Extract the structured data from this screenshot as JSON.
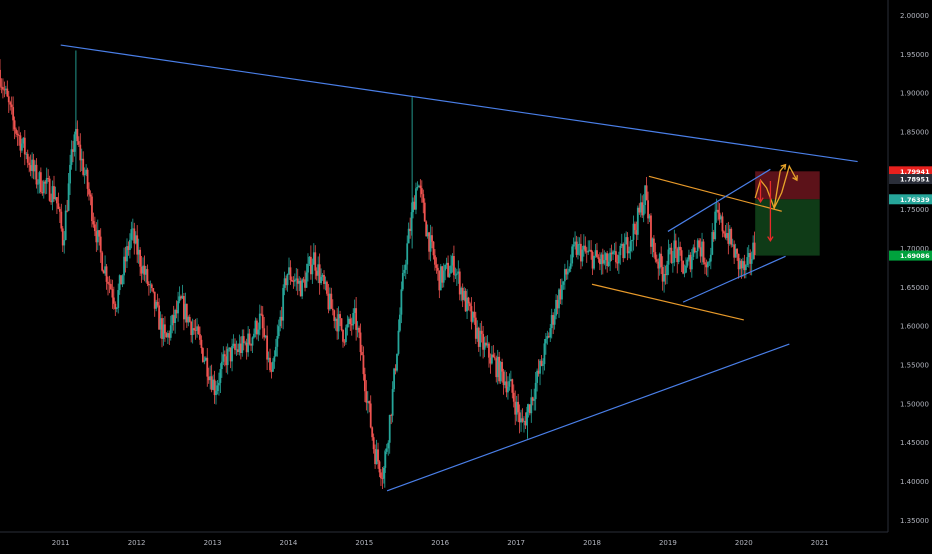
{
  "chart_data": {
    "type": "candlestick",
    "x_axis": {
      "ticks": [
        "2011",
        "2012",
        "2013",
        "2014",
        "2015",
        "2016",
        "2017",
        "2018",
        "2019",
        "2020",
        "2021"
      ],
      "range": [
        2010.2,
        2021.9
      ]
    },
    "y_axis": {
      "ticks": [
        "2.00000",
        "1.95000",
        "1.90000",
        "1.85000",
        "1.80000",
        "1.75000",
        "1.70000",
        "1.65000",
        "1.60000",
        "1.55000",
        "1.50000",
        "1.45000",
        "1.40000",
        "1.35000"
      ],
      "range": [
        1.335,
        2.02
      ],
      "position": "right"
    },
    "grid": false,
    "price_tags": [
      {
        "label": "1.79941",
        "value": 1.7994,
        "color": "#e8201d"
      },
      {
        "label": "1.78951",
        "value": 1.7895,
        "color": "#2a2e39"
      },
      {
        "label": "1.76339",
        "value": 1.7634,
        "color": "#26a69a"
      },
      {
        "label": "1.69086",
        "value": 1.6909,
        "color": "#00a23d"
      }
    ],
    "anchors": [
      [
        2010.2,
        1.93
      ],
      [
        2010.4,
        1.86
      ],
      [
        2010.7,
        1.79
      ],
      [
        2010.95,
        1.77
      ],
      [
        2011.05,
        1.71
      ],
      [
        2011.2,
        1.85
      ],
      [
        2011.35,
        1.79
      ],
      [
        2011.55,
        1.69
      ],
      [
        2011.75,
        1.63
      ],
      [
        2011.95,
        1.72
      ],
      [
        2012.15,
        1.66
      ],
      [
        2012.4,
        1.58
      ],
      [
        2012.6,
        1.63
      ],
      [
        2012.8,
        1.59
      ],
      [
        2012.95,
        1.55
      ],
      [
        2013.05,
        1.52
      ],
      [
        2013.2,
        1.56
      ],
      [
        2013.5,
        1.58
      ],
      [
        2013.65,
        1.61
      ],
      [
        2013.8,
        1.53
      ],
      [
        2014.0,
        1.67
      ],
      [
        2014.2,
        1.65
      ],
      [
        2014.35,
        1.69
      ],
      [
        2014.55,
        1.63
      ],
      [
        2014.75,
        1.59
      ],
      [
        2014.9,
        1.61
      ],
      [
        2015.0,
        1.55
      ],
      [
        2015.15,
        1.44
      ],
      [
        2015.27,
        1.41
      ],
      [
        2015.4,
        1.52
      ],
      [
        2015.55,
        1.68
      ],
      [
        2015.72,
        1.79
      ],
      [
        2015.85,
        1.72
      ],
      [
        2016.0,
        1.66
      ],
      [
        2016.2,
        1.68
      ],
      [
        2016.35,
        1.63
      ],
      [
        2016.55,
        1.58
      ],
      [
        2016.75,
        1.55
      ],
      [
        2016.95,
        1.52
      ],
      [
        2017.1,
        1.47
      ],
      [
        2017.2,
        1.5
      ],
      [
        2017.35,
        1.55
      ],
      [
        2017.55,
        1.63
      ],
      [
        2017.8,
        1.7
      ],
      [
        2018.0,
        1.69
      ],
      [
        2018.2,
        1.68
      ],
      [
        2018.4,
        1.69
      ],
      [
        2018.6,
        1.73
      ],
      [
        2018.72,
        1.77
      ],
      [
        2018.82,
        1.7
      ],
      [
        2018.95,
        1.67
      ],
      [
        2019.1,
        1.7
      ],
      [
        2019.25,
        1.67
      ],
      [
        2019.4,
        1.71
      ],
      [
        2019.55,
        1.68
      ],
      [
        2019.65,
        1.74
      ],
      [
        2019.8,
        1.72
      ],
      [
        2019.95,
        1.68
      ],
      [
        2020.05,
        1.67
      ],
      [
        2020.15,
        1.7
      ]
    ],
    "spikes": [
      {
        "x": 2011.2,
        "high": 1.955,
        "low": 1.8
      },
      {
        "x": 2015.63,
        "high": 1.895,
        "low": 1.7
      },
      {
        "x": 2015.27,
        "high": 1.44,
        "low": 1.392
      },
      {
        "x": 2017.15,
        "high": 1.5,
        "low": 1.455
      }
    ],
    "trendlines": [
      {
        "color": "#4a7fe8",
        "points": [
          [
            2011.0,
            1.962
          ],
          [
            2021.5,
            1.812
          ]
        ]
      },
      {
        "color": "#4a7fe8",
        "points": [
          [
            2015.3,
            1.388
          ],
          [
            2020.6,
            1.577
          ]
        ]
      },
      {
        "color": "#e89a2a",
        "points": [
          [
            2018.75,
            1.793
          ],
          [
            2020.5,
            1.748
          ]
        ]
      },
      {
        "color": "#e89a2a",
        "points": [
          [
            2018.0,
            1.654
          ],
          [
            2020.0,
            1.608
          ]
        ]
      },
      {
        "color": "#4a7fe8",
        "points": [
          [
            2019.0,
            1.722
          ],
          [
            2020.35,
            1.802
          ]
        ]
      },
      {
        "color": "#4a7fe8",
        "points": [
          [
            2019.2,
            1.631
          ],
          [
            2020.55,
            1.69
          ]
        ]
      }
    ],
    "position_box": {
      "x_start": 2020.15,
      "x_end": 2021.0,
      "entry": 1.7634,
      "stop": 1.7994,
      "target": 1.6909,
      "stop_color": "#5c1219",
      "target_color": "#0f3b17"
    },
    "projections": [
      {
        "color": "#e8a42a",
        "points": [
          [
            2020.15,
            1.765
          ],
          [
            2020.22,
            1.788
          ],
          [
            2020.3,
            1.778
          ],
          [
            2020.4,
            1.752
          ],
          [
            2020.5,
            1.772
          ],
          [
            2020.6,
            1.806
          ],
          [
            2020.7,
            1.788
          ]
        ]
      },
      {
        "color": "#e8a42a",
        "points": [
          [
            2020.4,
            1.752
          ],
          [
            2020.48,
            1.8
          ],
          [
            2020.55,
            1.808
          ]
        ]
      },
      {
        "color": "#e82a2a",
        "points": [
          [
            2020.35,
            1.787
          ],
          [
            2020.35,
            1.71
          ]
        ]
      },
      {
        "color": "#e82a2a",
        "points": [
          [
            2020.22,
            1.788
          ],
          [
            2020.22,
            1.76
          ]
        ]
      }
    ]
  }
}
